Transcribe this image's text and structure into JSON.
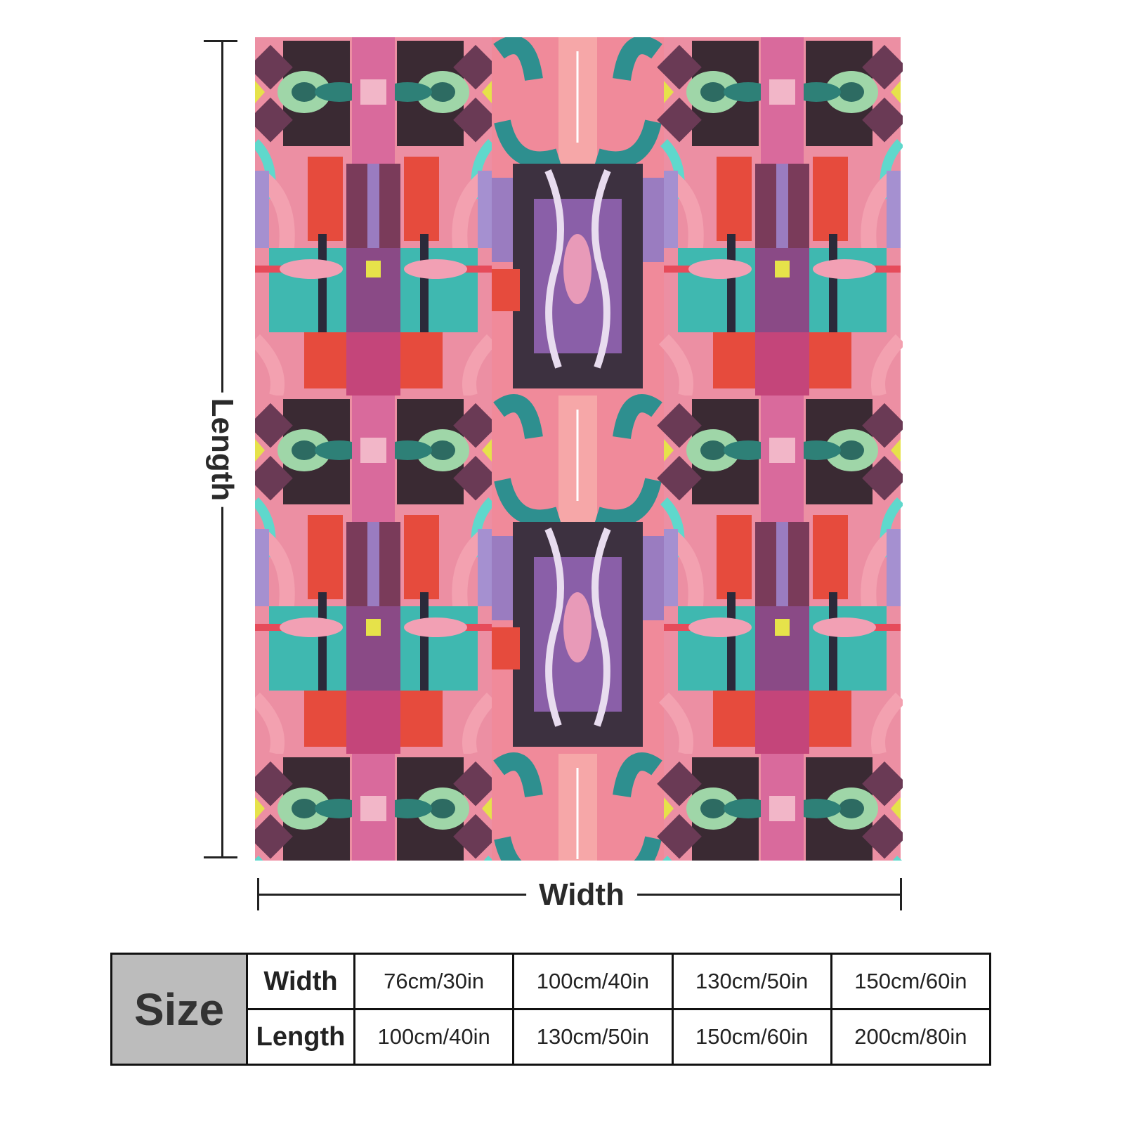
{
  "product_image": {
    "description_icon": "abstract-pink-teal-kaleidoscope-pattern"
  },
  "dimensions": {
    "length_label": "Length",
    "width_label": "Width"
  },
  "size_chart": {
    "header": "Size",
    "rows": [
      {
        "label": "Width",
        "values": [
          "76cm/30in",
          "100cm/40in",
          "130cm/50in",
          "150cm/60in"
        ]
      },
      {
        "label": "Length",
        "values": [
          "100cm/40in",
          "130cm/50in",
          "150cm/60in",
          "200cm/80in"
        ]
      }
    ]
  },
  "colors": {
    "pink": "#ec8a9c",
    "teal": "#3fb8b0",
    "dark": "#3a2a33",
    "red": "#e64b3d",
    "purple": "#9a7cc0",
    "chart_gray": "#bcbcbc"
  }
}
